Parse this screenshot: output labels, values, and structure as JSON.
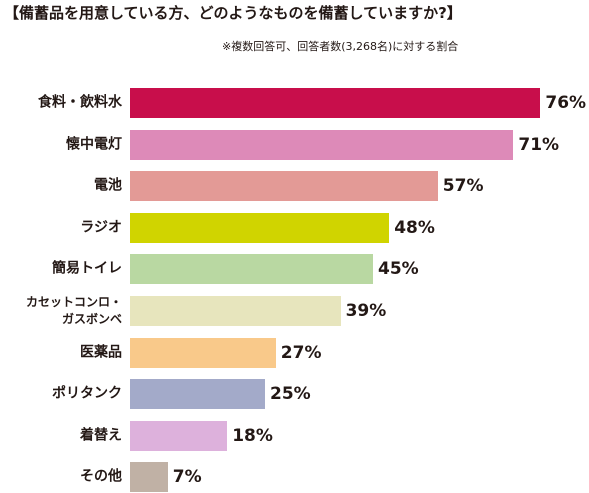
{
  "chart_data": {
    "type": "bar",
    "orientation": "horizontal",
    "title": "【備蓄品を用意している方、どのようなものを備蓄していますか?】",
    "subtitle": "※複数回答可、回答者数(3,268名)に対する割合",
    "categories": [
      "食料・飲料水",
      "懐中電灯",
      "電池",
      "ラジオ",
      "簡易トイレ",
      "カセットコンロ・\nガスボンベ",
      "医薬品",
      "ポリタンク",
      "着替え",
      "その他"
    ],
    "values": [
      76,
      71,
      57,
      48,
      45,
      39,
      27,
      25,
      18,
      7
    ],
    "value_labels": [
      "76%",
      "71%",
      "57%",
      "48%",
      "45%",
      "39%",
      "27%",
      "25%",
      "18%",
      "7%"
    ],
    "colors": [
      "#c80e4b",
      "#dd8ab8",
      "#e39a96",
      "#d0d400",
      "#b9d8a2",
      "#e7e5bd",
      "#f9c98a",
      "#a3aac9",
      "#ddb1dc",
      "#c0b1a5"
    ]
  }
}
